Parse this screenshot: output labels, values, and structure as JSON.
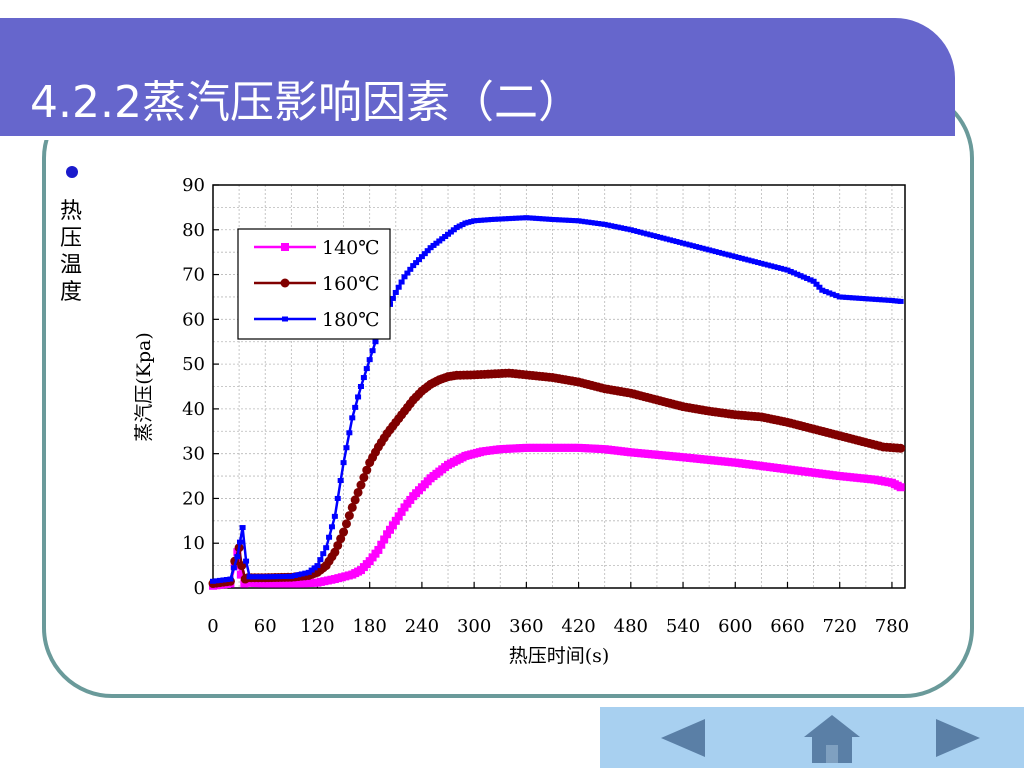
{
  "slide": {
    "title": "4.2.2蒸汽压影响因素（二）",
    "bullet_text": "热压温度"
  },
  "colors": {
    "title_bg": "#6666cc",
    "frame": "#6a9a9a",
    "nav_bg": "#a8d0f0",
    "nav_icon": "#5a7fa6",
    "series_140": "#ff00ff",
    "series_160": "#800000",
    "series_180": "#0000ff"
  },
  "nav": {
    "prev_icon": "triangle-left-icon",
    "home_icon": "home-icon",
    "next_icon": "triangle-right-icon"
  },
  "chart_data": {
    "type": "line",
    "xlabel": "热压时间(s)",
    "ylabel": "蒸汽压(Kpa)",
    "xlim": [
      0,
      795
    ],
    "ylim": [
      0,
      90
    ],
    "xticks": [
      0,
      60,
      120,
      180,
      240,
      300,
      360,
      420,
      480,
      540,
      600,
      660,
      720,
      780
    ],
    "yticks": [
      0,
      10,
      20,
      30,
      40,
      50,
      60,
      70,
      80,
      90
    ],
    "grid": true,
    "legend_position": "top-left",
    "series": [
      {
        "name": "140℃",
        "marker": "square",
        "points": [
          [
            0,
            0.5
          ],
          [
            20,
            1
          ],
          [
            25,
            5
          ],
          [
            28,
            8
          ],
          [
            32,
            3
          ],
          [
            36,
            1
          ],
          [
            40,
            1.2
          ],
          [
            60,
            1
          ],
          [
            100,
            1
          ],
          [
            120,
            1.2
          ],
          [
            140,
            2
          ],
          [
            160,
            3
          ],
          [
            170,
            4
          ],
          [
            180,
            6
          ],
          [
            190,
            8.5
          ],
          [
            200,
            12
          ],
          [
            210,
            15
          ],
          [
            220,
            18
          ],
          [
            230,
            20.5
          ],
          [
            240,
            22.5
          ],
          [
            250,
            24.5
          ],
          [
            260,
            26
          ],
          [
            270,
            27.5
          ],
          [
            280,
            28.5
          ],
          [
            290,
            29.5
          ],
          [
            300,
            30
          ],
          [
            310,
            30.5
          ],
          [
            330,
            31
          ],
          [
            360,
            31.3
          ],
          [
            420,
            31.3
          ],
          [
            450,
            31
          ],
          [
            480,
            30.3
          ],
          [
            540,
            29.2
          ],
          [
            600,
            28
          ],
          [
            660,
            26.5
          ],
          [
            720,
            25
          ],
          [
            760,
            24.2
          ],
          [
            780,
            23.5
          ],
          [
            790,
            22.5
          ]
        ]
      },
      {
        "name": "160℃",
        "marker": "circle",
        "points": [
          [
            0,
            1
          ],
          [
            20,
            1.5
          ],
          [
            25,
            6
          ],
          [
            30,
            9
          ],
          [
            33,
            5
          ],
          [
            37,
            2
          ],
          [
            40,
            2.3
          ],
          [
            60,
            2.3
          ],
          [
            90,
            2.4
          ],
          [
            110,
            2.8
          ],
          [
            120,
            3.5
          ],
          [
            130,
            5
          ],
          [
            140,
            8
          ],
          [
            150,
            12.5
          ],
          [
            160,
            18
          ],
          [
            170,
            23
          ],
          [
            180,
            28
          ],
          [
            190,
            31.5
          ],
          [
            200,
            34.5
          ],
          [
            210,
            37
          ],
          [
            220,
            39.5
          ],
          [
            230,
            42
          ],
          [
            240,
            44
          ],
          [
            250,
            45.5
          ],
          [
            260,
            46.5
          ],
          [
            270,
            47.2
          ],
          [
            280,
            47.5
          ],
          [
            300,
            47.6
          ],
          [
            320,
            47.8
          ],
          [
            340,
            48
          ],
          [
            360,
            47.6
          ],
          [
            390,
            47
          ],
          [
            420,
            46
          ],
          [
            450,
            44.5
          ],
          [
            480,
            43.5
          ],
          [
            510,
            42
          ],
          [
            540,
            40.5
          ],
          [
            570,
            39.5
          ],
          [
            600,
            38.7
          ],
          [
            630,
            38.2
          ],
          [
            660,
            37
          ],
          [
            690,
            35.5
          ],
          [
            720,
            34
          ],
          [
            750,
            32.5
          ],
          [
            770,
            31.5
          ],
          [
            790,
            31.2
          ]
        ]
      },
      {
        "name": "180℃",
        "marker": "dash",
        "points": [
          [
            0,
            1.5
          ],
          [
            20,
            2
          ],
          [
            28,
            7
          ],
          [
            34,
            13.5
          ],
          [
            38,
            6
          ],
          [
            42,
            2.5
          ],
          [
            60,
            2.5
          ],
          [
            90,
            2.6
          ],
          [
            110,
            3.5
          ],
          [
            120,
            5
          ],
          [
            130,
            9
          ],
          [
            140,
            16
          ],
          [
            150,
            28
          ],
          [
            160,
            38
          ],
          [
            170,
            45
          ],
          [
            180,
            51
          ],
          [
            190,
            57
          ],
          [
            200,
            62
          ],
          [
            210,
            66
          ],
          [
            220,
            69.5
          ],
          [
            230,
            72
          ],
          [
            240,
            74
          ],
          [
            250,
            76
          ],
          [
            260,
            77.5
          ],
          [
            270,
            79
          ],
          [
            280,
            80.5
          ],
          [
            290,
            81.5
          ],
          [
            300,
            82
          ],
          [
            320,
            82.3
          ],
          [
            340,
            82.5
          ],
          [
            360,
            82.7
          ],
          [
            390,
            82.3
          ],
          [
            420,
            82
          ],
          [
            450,
            81.2
          ],
          [
            480,
            80
          ],
          [
            510,
            78.5
          ],
          [
            540,
            77
          ],
          [
            570,
            75.5
          ],
          [
            600,
            74
          ],
          [
            630,
            72.5
          ],
          [
            660,
            71
          ],
          [
            690,
            68.5
          ],
          [
            700,
            66.5
          ],
          [
            720,
            65
          ],
          [
            750,
            64.6
          ],
          [
            780,
            64.2
          ],
          [
            790,
            64
          ]
        ]
      }
    ]
  }
}
